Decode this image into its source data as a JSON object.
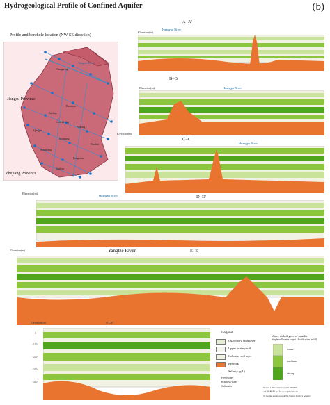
{
  "title": "Hydrogeological Profile of Confined Aquifer",
  "badge": "(b)",
  "map": {
    "subtitle": "Profile and borehole location (NW-SE direction)",
    "provinces": [
      "Jiangsu Province",
      "Zhejiang Province"
    ],
    "river": "Yangtze River",
    "places": [
      "Changxing",
      "Jiading",
      "Baoshan",
      "Central City",
      "Pudong",
      "Qingpu",
      "Minhang",
      "Songjiang",
      "Fengxian",
      "Jinshan",
      "Nanhui"
    ]
  },
  "sections": [
    {
      "label": "A–A'",
      "river": "Huangpu River",
      "elev_label": "Elevation(m)"
    },
    {
      "label": "B–B'",
      "river": "Huangpu River",
      "elev_label": "Elevation(m)"
    },
    {
      "label": "C–C'",
      "river": "Huangpu River",
      "elev_label": "Elevation(m)"
    },
    {
      "label": "D–D'",
      "river": "Huangpu River",
      "elev_label": "Elevation(m)"
    },
    {
      "label": "E–E'",
      "river": "Yangtze River",
      "elev_label": "Elevation(m)"
    },
    {
      "label": "F–F'",
      "river": "",
      "elev_label": "Elevation(m)"
    }
  ],
  "ticks": [
    "0",
    "−100",
    "−200",
    "−300",
    "−400"
  ],
  "legend": {
    "title": "Legend",
    "items": [
      "Quaternary sand layer",
      "Upper tertiary soil",
      "Cohesive soil layer",
      "Bedrock",
      "Salinity (g/L)"
    ],
    "salinity_notes": [
      "Freshwater",
      "Brackish water",
      "Salt water"
    ],
    "water_title": "Water rich degree of aquifer",
    "water_sub": "Single well water output classification (m³/d)",
    "degrees": [
      "weak",
      "medium",
      "strong"
    ],
    "notes": [
      "Notes: 1. Horizontal scale 1:500000",
      "2. Ⅰ, Ⅱ, Ⅲ, Ⅳ and Ⅴ are aquifer layers",
      "3. ⟩ is the under area of the Upper Tertiary aquifer"
    ]
  },
  "colors": {
    "bedrock": "#e8742f",
    "strong": "#4fa51c",
    "medium": "#8cc63f",
    "weak": "#c9e39a",
    "clay": "#f2f2e4",
    "sand": "#e4eed4",
    "water": "#1f77b4"
  }
}
